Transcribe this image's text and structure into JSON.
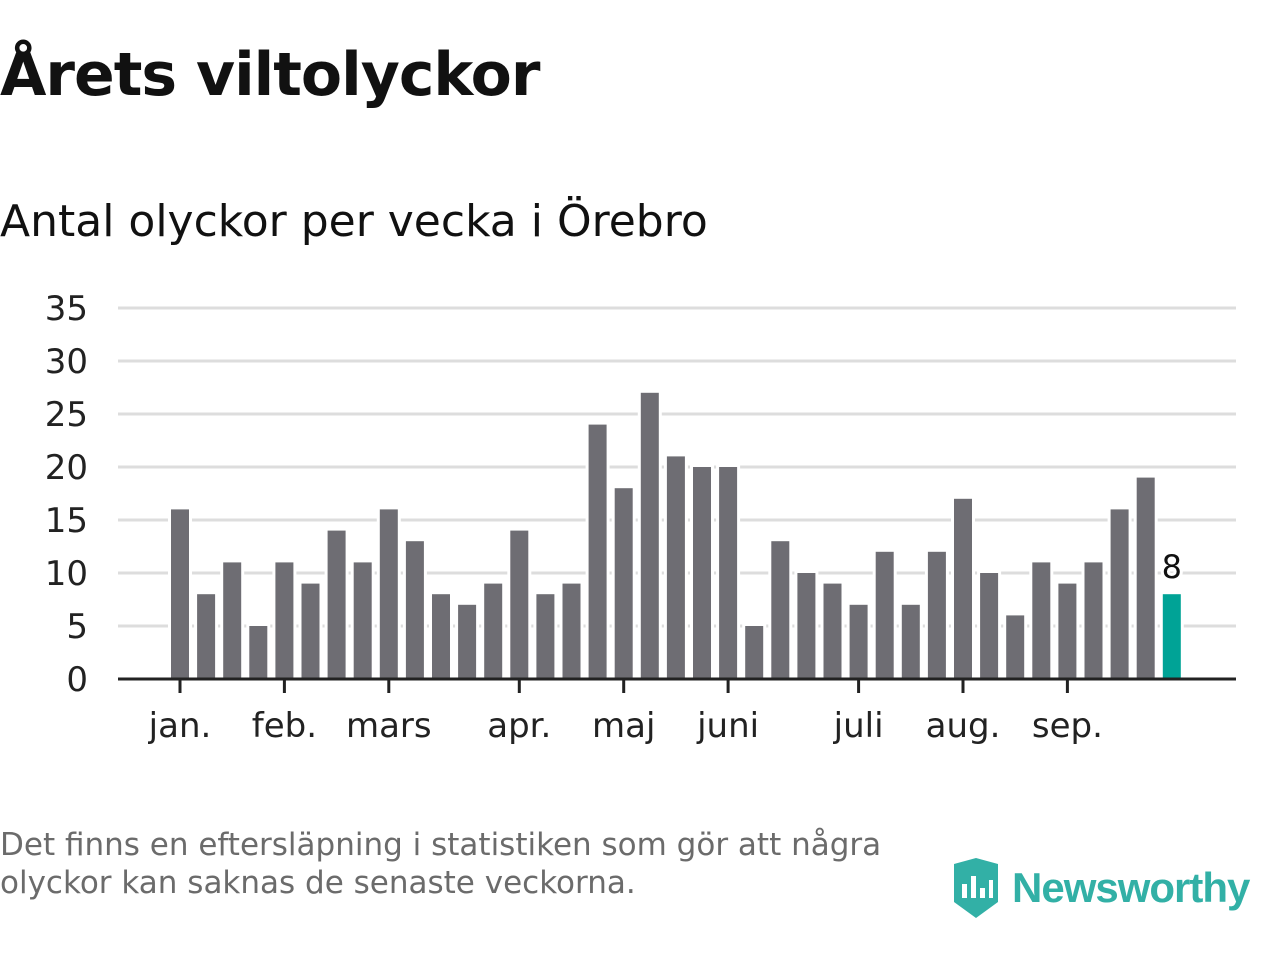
{
  "title": "Årets viltolyckor",
  "chart_data": {
    "type": "bar",
    "title": "Antal olyckor per vecka i Örebro",
    "xlabel": "",
    "ylabel": "",
    "ylim": [
      0,
      35
    ],
    "yticks": [
      0,
      5,
      10,
      15,
      20,
      25,
      30,
      35
    ],
    "grid": true,
    "values": [
      16,
      8,
      11,
      5,
      11,
      9,
      14,
      11,
      16,
      13,
      8,
      7,
      9,
      14,
      8,
      9,
      24,
      18,
      27,
      21,
      20,
      20,
      5,
      13,
      10,
      9,
      7,
      12,
      7,
      12,
      17,
      10,
      6,
      11,
      9,
      11,
      16,
      19,
      8
    ],
    "month_ticks": [
      {
        "label": "jan.",
        "index": 0
      },
      {
        "label": "feb.",
        "index": 4
      },
      {
        "label": "mars",
        "index": 8
      },
      {
        "label": "apr.",
        "index": 13
      },
      {
        "label": "maj",
        "index": 17
      },
      {
        "label": "juni",
        "index": 21
      },
      {
        "label": "juli",
        "index": 26
      },
      {
        "label": "aug.",
        "index": 30
      },
      {
        "label": "sep.",
        "index": 34
      }
    ],
    "highlight_index": 38,
    "highlight_label": "8",
    "colors": {
      "bar": "#6e6d73",
      "highlight": "#00a396",
      "grid": "#dddddd",
      "axis": "#222222"
    }
  },
  "footnote": "Det finns en eftersläpning i statistiken som gör att några olyckor kan saknas de senaste veckorna.",
  "logo_text": "Newsworthy"
}
